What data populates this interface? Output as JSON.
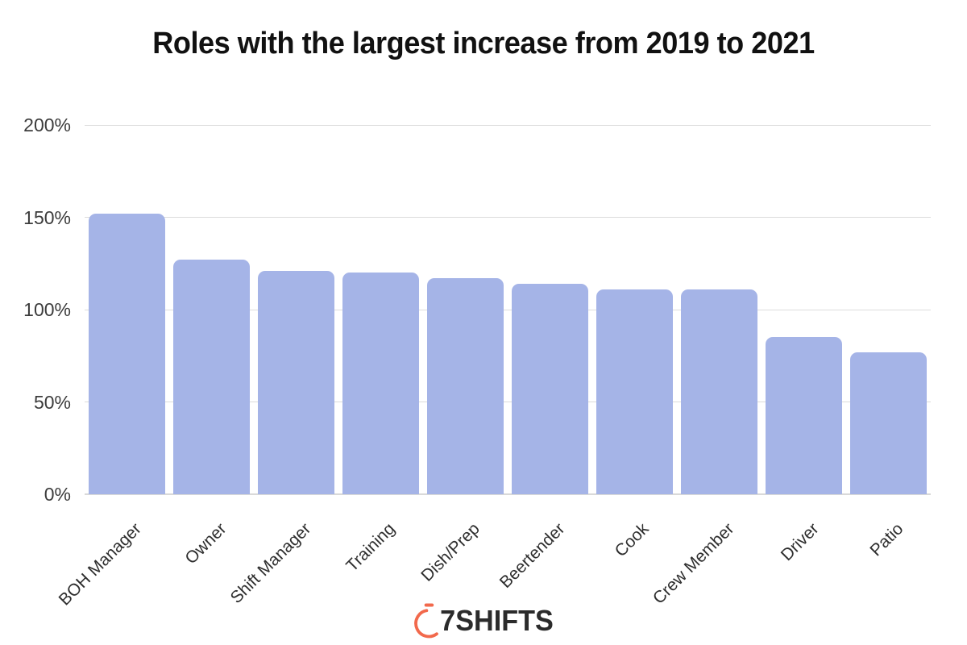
{
  "chart_data": {
    "type": "bar",
    "title": "Roles with the largest increase from 2019 to 2021",
    "categories": [
      "BOH Manager",
      "Owner",
      "Shift Manager",
      "Training",
      "Dish/Prep",
      "Beertender",
      "Cook",
      "Crew Member",
      "Driver",
      "Patio"
    ],
    "values": [
      152,
      127,
      121,
      120,
      117,
      114,
      111,
      111,
      85,
      77
    ],
    "unit": "%",
    "xlabel": "",
    "ylabel": "",
    "ylim": [
      0,
      200
    ],
    "yticks": [
      {
        "label": "200%",
        "value": 200
      },
      {
        "label": "150%",
        "value": 150
      },
      {
        "label": "100%",
        "value": 100
      },
      {
        "label": "50%",
        "value": 50
      },
      {
        "label": "0%",
        "value": 0
      }
    ],
    "grid": true,
    "legend": false,
    "bar_color": "#a5b4e7",
    "gridline_color": "#dcdcdc",
    "tick_label_color": "#3c3c3c",
    "title_color": "#111111"
  },
  "footer": {
    "logo_text": "7SHIFTS",
    "logo_mark": "stopwatch-icon",
    "logo_accent_color": "#f2694c",
    "logo_text_color": "#2b2b2b"
  }
}
